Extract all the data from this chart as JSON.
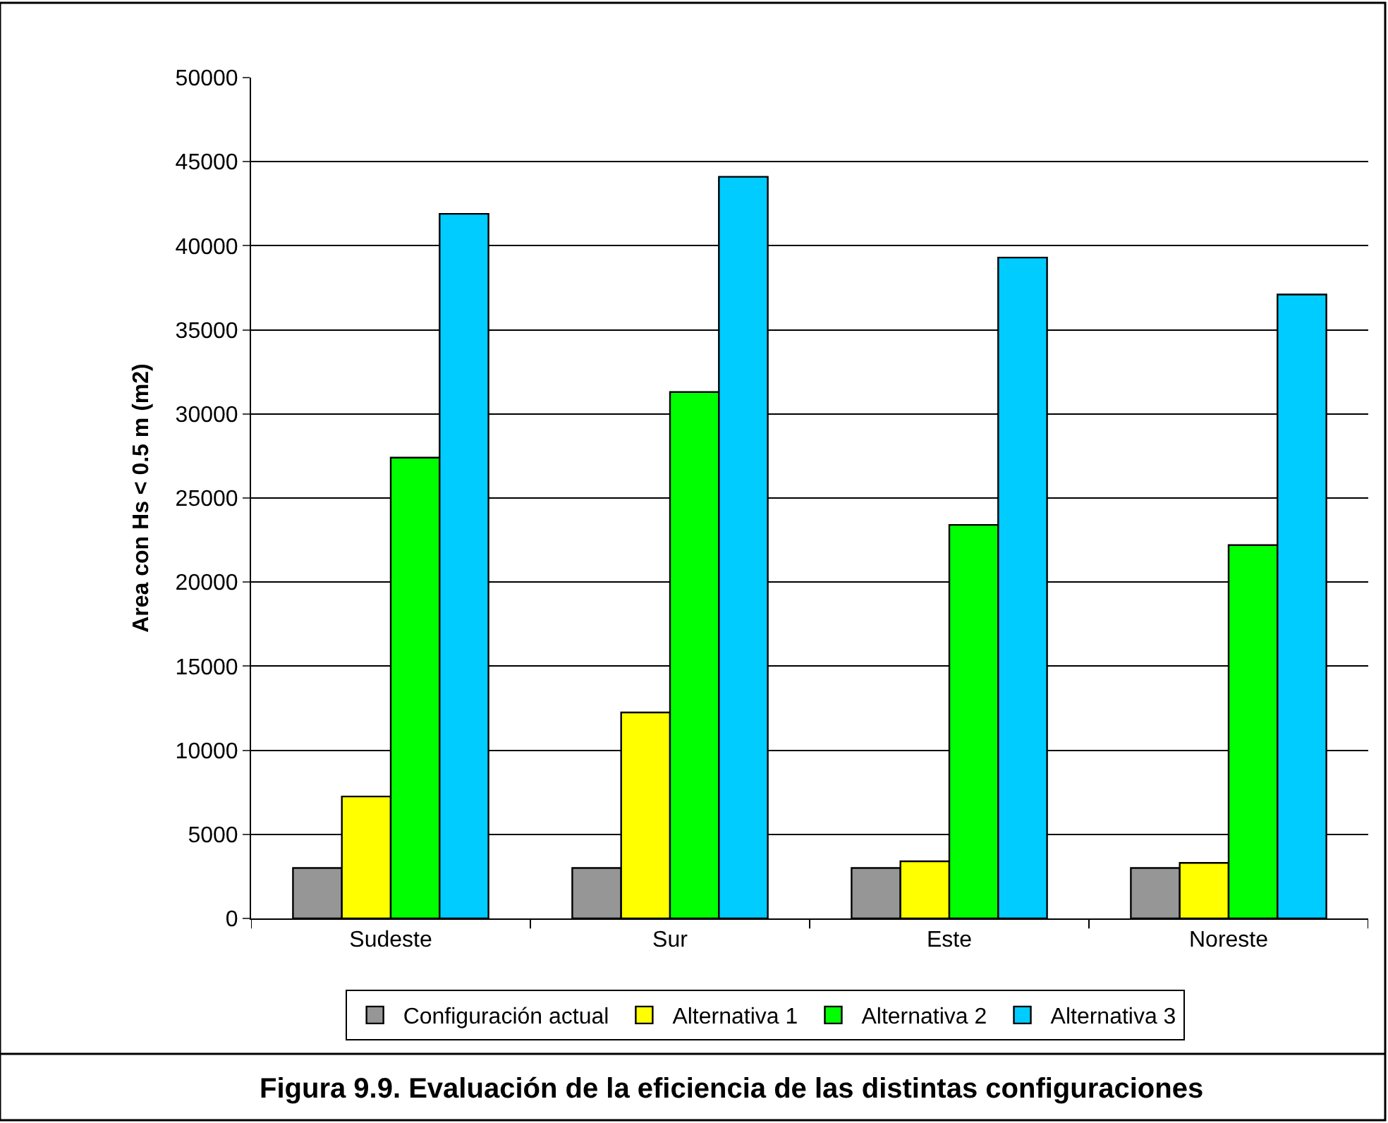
{
  "chart_data": {
    "type": "bar",
    "title": "Figura 9.9. Evaluación de la eficiencia de las distintas configuraciones",
    "ylabel": "Area con Hs < 0.5 m (m2)",
    "categories": [
      "Sudeste",
      "Sur",
      "Este",
      "Noreste"
    ],
    "series": [
      {
        "name": "Configuración actual",
        "color": "#969696",
        "values": [
          3000,
          3000,
          3000,
          3000
        ]
      },
      {
        "name": "Alternativa 1",
        "color": "#ffff00",
        "values": [
          7250,
          12250,
          3400,
          3300
        ]
      },
      {
        "name": "Alternativa 2",
        "color": "#00ff00",
        "values": [
          27400,
          31300,
          23400,
          22200
        ]
      },
      {
        "name": "Alternativa 3",
        "color": "#00ccff",
        "values": [
          41900,
          44100,
          39300,
          37100
        ]
      }
    ],
    "ylim": [
      0,
      50000
    ],
    "yticks": [
      0,
      5000,
      10000,
      15000,
      20000,
      25000,
      30000,
      35000,
      40000,
      45000,
      50000
    ],
    "grid": "y",
    "legend": "bottom"
  }
}
